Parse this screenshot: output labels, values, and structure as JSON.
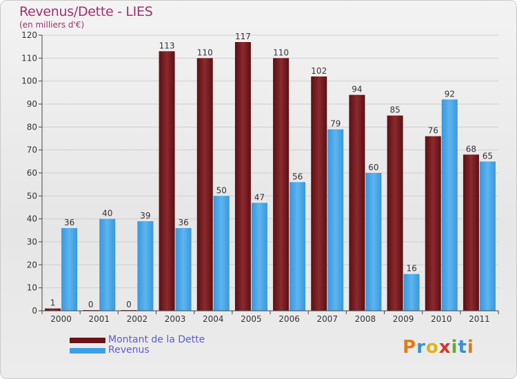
{
  "title": "Revenus/Dette - LIES",
  "subtitle": "(en milliers d'€)",
  "logo_text": "Proxiti",
  "colors": {
    "debt": "#7a1e22",
    "revenue": "#4aa6e8",
    "title": "#a0306a",
    "legend_text": "#5b5bd6"
  },
  "legend": [
    {
      "label": "Montant de la Dette",
      "color": "#6a1216"
    },
    {
      "label": "Revenus",
      "color": "#3d9ee6"
    }
  ],
  "chart_data": {
    "type": "bar",
    "title": "Revenus/Dette - LIES",
    "subtitle": "(en milliers d'€)",
    "categories": [
      "2000",
      "2001",
      "2002",
      "2003",
      "2004",
      "2005",
      "2006",
      "2007",
      "2008",
      "2009",
      "2010",
      "2011"
    ],
    "series": [
      {
        "name": "Montant de la Dette",
        "values": [
          1,
          0,
          0,
          113,
          110,
          117,
          110,
          102,
          94,
          85,
          76,
          68
        ]
      },
      {
        "name": "Revenus",
        "values": [
          36,
          40,
          39,
          36,
          50,
          47,
          56,
          79,
          60,
          16,
          92,
          65
        ]
      }
    ],
    "ylim": [
      0,
      120
    ],
    "yticks": [
      0,
      10,
      20,
      30,
      40,
      50,
      60,
      70,
      80,
      90,
      100,
      110,
      120
    ],
    "grid": true,
    "legend_position": "bottom-left"
  }
}
